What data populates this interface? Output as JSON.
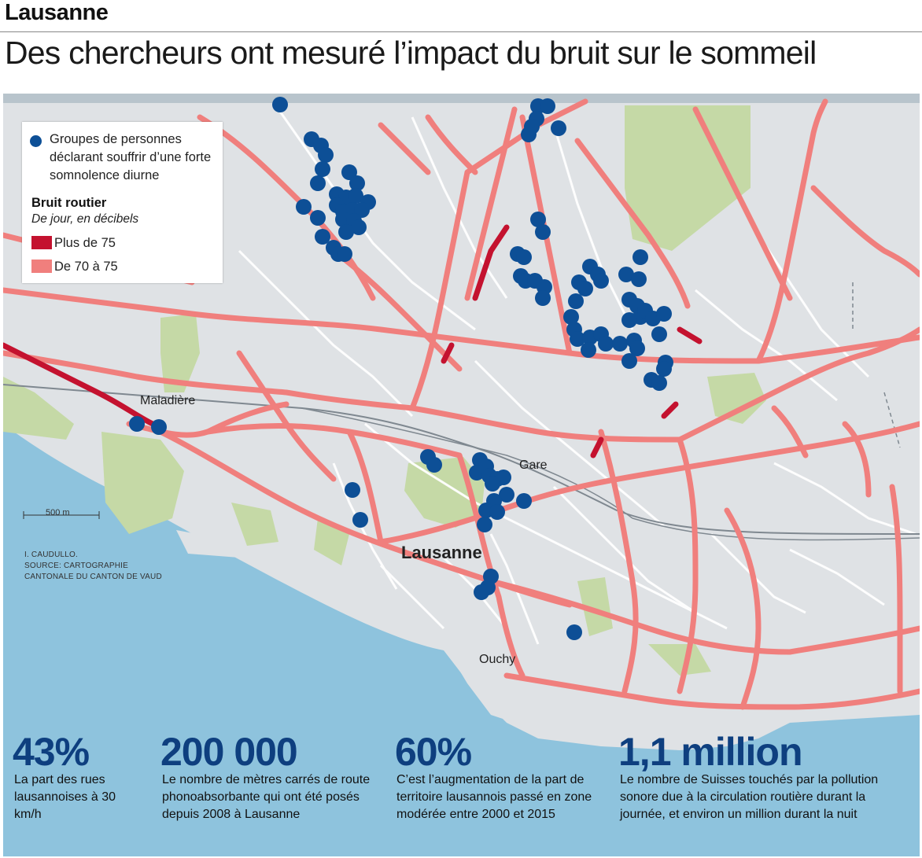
{
  "header": {
    "kicker": "Lausanne",
    "headline": "Des chercheurs ont mesuré l’impact du bruit sur le sommeil"
  },
  "legend": {
    "dot_label": "Groupes de personnes déclarant souffrir d’une forte somnolence diurne",
    "noise_title": "Bruit routier",
    "noise_subtitle": "De jour, en décibels",
    "items": [
      {
        "label": "Plus de 75",
        "color": "#c4122f"
      },
      {
        "label": "De 70 à 75",
        "color": "#f07f7d"
      }
    ]
  },
  "map": {
    "labels": {
      "maladiere": "Maladière",
      "gare": "Gare",
      "lausanne": "Lausanne",
      "ouchy": "Ouchy"
    },
    "scale": "500 m",
    "credit": [
      "I. CAUDULLO.",
      "SOURCE: CARTOGRAPHIE",
      "CANTONALE DU CANTON DE VAUD"
    ],
    "colors": {
      "land": "#dfe2e5",
      "lake": "#8ec3dd",
      "park": "#c5d9a6",
      "dot": "#0d4f96",
      "road": "#f07f7d",
      "road_high": "#c4122f"
    }
  },
  "stats": [
    {
      "value": "43%",
      "text": "La part des rues lausannoises à 30 km/h"
    },
    {
      "value": "200 000",
      "text": "Le nombre de mètres carrés de route phonoabsorbante qui ont été posés depuis 2008 à Lausanne"
    },
    {
      "value": "60%",
      "text": "C’est l’augmentation de la part de territoire lausannois passé en zone modérée entre 2000 et 2015"
    },
    {
      "value": "1,1 million",
      "text": "Le nombre de Suisses touchés par la pollution sonore due à la circulation routière durant la journée, et environ un million durant la nuit"
    }
  ]
}
